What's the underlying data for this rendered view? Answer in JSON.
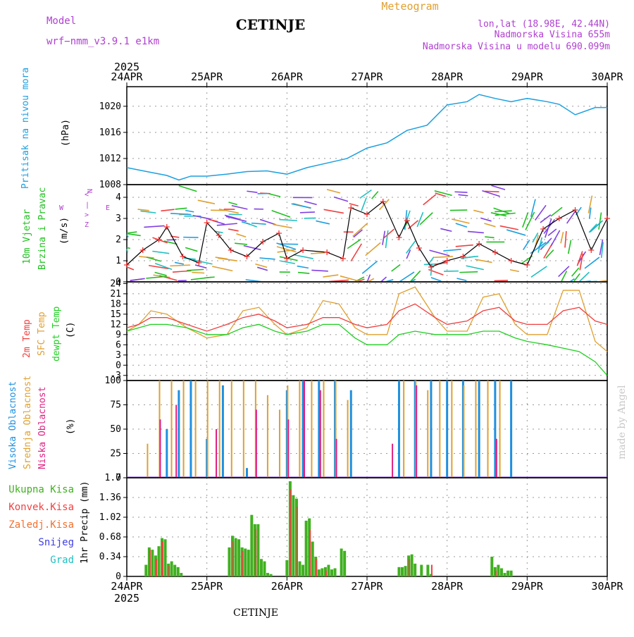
{
  "header": {
    "model_label": "Model",
    "model_name": "wrf−nmm_v3.9.1  e1km",
    "city": "CETINJE",
    "meteogram": "Meteogram",
    "lonlat": "lon,lat (18.98E, 42.44N)",
    "altitude": "Nadmorska Visina 655m",
    "model_altitude": "Nadmorska Visina u modelu 690.099m",
    "footer_city": "CETINJE",
    "signature": "made by Angel"
  },
  "colors": {
    "pressure": "#1ca0e0",
    "wind_speed_marks": "#f03030",
    "wind_line": "#000000",
    "t2m": "#f04040",
    "sfc_temp": "#e0a030",
    "dewpt": "#20d020",
    "cloud_high": "#1e90e0",
    "cloud_mid": "#e0a030",
    "cloud_low": "#e02080",
    "precip_total": "#40b020",
    "precip_conv": "#f04040",
    "grid": "#999999"
  },
  "chart_data": [
    {
      "type": "line",
      "title": "Pritisak na nivou mora",
      "ylabel": "(hPa)",
      "ylim": [
        1008,
        1023
      ],
      "yticks": [
        "1008",
        "1012",
        "1016",
        "1020"
      ],
      "x_unit": "day offset from 24APR 00Z",
      "series": [
        {
          "name": "Pritisak na nivou mora",
          "x": [
            0,
            0.25,
            0.5,
            0.65,
            0.8,
            1.0,
            1.25,
            1.5,
            1.75,
            2.0,
            2.25,
            2.5,
            2.75,
            3.0,
            3.25,
            3.5,
            3.75,
            4.0,
            4.25,
            4.4,
            4.6,
            4.8,
            5.0,
            5.25,
            5.4,
            5.6,
            5.85,
            6.0
          ],
          "values": [
            1010.6,
            1010.0,
            1009.4,
            1008.7,
            1009.3,
            1009.3,
            1009.6,
            1010.0,
            1010.1,
            1009.6,
            1010.6,
            1011.3,
            1012.0,
            1013.6,
            1014.4,
            1016.3,
            1017.1,
            1020.2,
            1020.7,
            1021.8,
            1021.2,
            1020.7,
            1021.2,
            1020.7,
            1020.3,
            1018.7,
            1019.8,
            1019.8
          ]
        }
      ]
    },
    {
      "type": "line",
      "title": "10m Vjetar Brzina i Pravac",
      "ylabel": "(m/s)",
      "ylim": [
        0,
        4.6
      ],
      "yticks": [
        "0",
        "1",
        "2",
        "3",
        "4"
      ],
      "compass": [
        "N",
        "<",
        "|",
        ">",
        "Z",
        "W",
        "E",
        "α"
      ],
      "series": [
        {
          "name": "Brzina",
          "x": [
            0,
            0.2,
            0.4,
            0.5,
            0.7,
            0.9,
            1.0,
            1.15,
            1.3,
            1.5,
            1.7,
            1.9,
            2.0,
            2.2,
            2.5,
            2.7,
            2.8,
            3.0,
            3.2,
            3.4,
            3.5,
            3.65,
            3.8,
            4.0,
            4.2,
            4.4,
            4.6,
            4.8,
            5.0,
            5.2,
            5.4,
            5.6,
            5.8,
            6.0
          ],
          "values": [
            0.8,
            1.5,
            2.0,
            2.6,
            1.2,
            0.9,
            2.8,
            2.2,
            1.5,
            1.2,
            1.9,
            2.3,
            1.1,
            1.5,
            1.4,
            1.1,
            3.5,
            3.2,
            3.8,
            2.1,
            2.9,
            1.6,
            0.7,
            1.0,
            1.2,
            1.8,
            1.4,
            1.0,
            0.8,
            2.5,
            3.0,
            3.4,
            1.5,
            3.0
          ]
        }
      ]
    },
    {
      "type": "line",
      "title": "2m Temp / SFC Temp / dewpt Temp",
      "ylabel": "(C)",
      "ylim": [
        -4.5,
        24.5
      ],
      "yticks": [
        "-3",
        "0",
        "3",
        "6",
        "9",
        "12",
        "15",
        "18",
        "21",
        "24"
      ],
      "x_unit": "day offset from 24APR 00Z",
      "series": [
        {
          "name": "2m Temp",
          "x": [
            0,
            0.15,
            0.3,
            0.5,
            0.75,
            1.0,
            1.25,
            1.45,
            1.65,
            1.85,
            2.0,
            2.25,
            2.45,
            2.65,
            2.85,
            3.0,
            3.25,
            3.4,
            3.6,
            3.85,
            4.0,
            4.25,
            4.45,
            4.65,
            4.85,
            5.0,
            5.25,
            5.45,
            5.65,
            5.85,
            6.0
          ],
          "values": [
            11,
            12,
            14,
            14,
            12,
            10,
            12,
            14,
            15,
            13,
            11,
            12,
            14,
            14,
            12,
            11,
            12,
            16,
            18,
            14,
            12,
            13,
            16,
            17,
            13,
            12,
            12,
            16,
            17,
            13,
            12
          ]
        },
        {
          "name": "SFC Temp",
          "x": [
            0,
            0.15,
            0.3,
            0.5,
            0.75,
            1.0,
            1.25,
            1.45,
            1.65,
            1.85,
            2.0,
            2.25,
            2.45,
            2.65,
            2.85,
            3.0,
            3.25,
            3.4,
            3.6,
            3.85,
            4.0,
            4.25,
            4.45,
            4.65,
            4.85,
            5.0,
            5.25,
            5.45,
            5.65,
            5.85,
            6.0
          ],
          "values": [
            10,
            12,
            16,
            15,
            11,
            8,
            9,
            16,
            17,
            12,
            9,
            11,
            19,
            18,
            11,
            9,
            9,
            21,
            23,
            14,
            10,
            10,
            20,
            21,
            12,
            9,
            9,
            22,
            22,
            7,
            4
          ]
        },
        {
          "name": "dewpt Temp",
          "x": [
            0,
            0.15,
            0.3,
            0.5,
            0.75,
            1.0,
            1.25,
            1.45,
            1.65,
            1.85,
            2.0,
            2.25,
            2.45,
            2.65,
            2.85,
            3.0,
            3.25,
            3.4,
            3.6,
            3.85,
            4.0,
            4.25,
            4.45,
            4.65,
            4.85,
            5.0,
            5.25,
            5.45,
            5.65,
            5.85,
            6.0
          ],
          "values": [
            10,
            11,
            12,
            12,
            11,
            9,
            9,
            11,
            12,
            10,
            9,
            10,
            12,
            12,
            8,
            6,
            6,
            9,
            10,
            9,
            9,
            9,
            10,
            10,
            8,
            7,
            6,
            5,
            4,
            1,
            -3
          ]
        }
      ]
    },
    {
      "type": "bar",
      "title": "Visoka / Srednja / Niska Oblacnost",
      "ylabel": "(%)",
      "ylim": [
        0,
        100
      ],
      "yticks": [
        "0",
        "25",
        "50",
        "75",
        "100"
      ],
      "x_unit": "day offset from 24APR 00Z",
      "series": [
        {
          "name": "Visoka Oblacnost",
          "x": [
            0.5,
            0.65,
            0.8,
            1.0,
            1.2,
            1.5,
            2.0,
            2.2,
            2.4,
            2.6,
            2.8,
            3.4,
            3.6,
            3.8,
            4.0,
            4.2,
            4.4,
            4.6,
            4.8
          ],
          "values": [
            50,
            90,
            100,
            40,
            95,
            10,
            90,
            100,
            100,
            100,
            90,
            100,
            100,
            100,
            100,
            100,
            100,
            100,
            100
          ]
        },
        {
          "name": "Srednja Oblacnost",
          "x": [
            0.25,
            0.4,
            0.55,
            0.7,
            0.85,
            1.0,
            1.15,
            1.3,
            1.45,
            1.6,
            1.75,
            1.9,
            2.0,
            2.15,
            2.3,
            2.45,
            2.6,
            2.75,
            3.45,
            3.6,
            3.75,
            3.9,
            4.05,
            4.2,
            4.35,
            4.5,
            4.65
          ],
          "values": [
            35,
            100,
            100,
            100,
            100,
            100,
            100,
            100,
            100,
            100,
            85,
            70,
            95,
            100,
            100,
            100,
            100,
            80,
            100,
            100,
            90,
            100,
            100,
            95,
            100,
            100,
            100
          ]
        },
        {
          "name": "Niska Oblacnost",
          "x": [
            0.4,
            0.6,
            1.1,
            1.6,
            2.0,
            2.2,
            2.4,
            2.6,
            3.3,
            3.6,
            4.6
          ],
          "values": [
            60,
            75,
            50,
            70,
            60,
            100,
            90,
            40,
            35,
            95,
            40
          ]
        }
      ]
    },
    {
      "type": "bar",
      "title": "1hr Precip",
      "ylabel": "1hr Precip (mm)",
      "ylim": [
        0,
        1.7
      ],
      "yticks": [
        "0",
        "0.34",
        "0.68",
        "1.02",
        "1.36",
        "1.7"
      ],
      "xticks": [
        "24APR",
        "25APR",
        "26APR",
        "27APR",
        "28APR",
        "29APR",
        "30APR"
      ],
      "year": "2025",
      "legend": [
        "Ukupna Kisa",
        "Konvek.Kisa",
        "Zaledj.Kisa",
        "Snijeg",
        "Grad"
      ],
      "series": [
        {
          "name": "Ukupna Kisa",
          "x": [
            0.24,
            0.28,
            0.32,
            0.36,
            0.4,
            0.44,
            0.48,
            0.52,
            0.56,
            0.6,
            0.64,
            0.68,
            1.28,
            1.32,
            1.36,
            1.4,
            1.44,
            1.48,
            1.52,
            1.56,
            1.6,
            1.64,
            1.68,
            1.72,
            1.76,
            1.8,
            2.0,
            2.04,
            2.08,
            2.12,
            2.16,
            2.2,
            2.24,
            2.28,
            2.32,
            2.36,
            2.4,
            2.44,
            2.48,
            2.52,
            2.56,
            2.6,
            2.68,
            2.72,
            3.4,
            3.44,
            3.48,
            3.52,
            3.56,
            3.6,
            3.68,
            3.76,
            3.8,
            4.56,
            4.6,
            4.64,
            4.68,
            4.72,
            4.76,
            4.8
          ],
          "values": [
            0.2,
            0.5,
            0.46,
            0.36,
            0.52,
            0.66,
            0.64,
            0.22,
            0.26,
            0.2,
            0.16,
            0.06,
            0.5,
            0.7,
            0.66,
            0.64,
            0.5,
            0.48,
            0.46,
            1.06,
            0.9,
            0.9,
            0.3,
            0.26,
            0.06,
            0.04,
            0.28,
            1.64,
            1.4,
            1.34,
            0.26,
            0.2,
            0.96,
            1.0,
            0.6,
            0.34,
            0.12,
            0.14,
            0.16,
            0.2,
            0.12,
            0.14,
            0.48,
            0.44,
            0.16,
            0.16,
            0.18,
            0.36,
            0.38,
            0.22,
            0.2,
            0.2,
            0.04,
            0.34,
            0.16,
            0.2,
            0.14,
            0.06,
            0.1,
            0.1
          ]
        },
        {
          "name": "Konvek.Kisa",
          "x": [
            0.28,
            0.36,
            0.44,
            0.52,
            1.32,
            1.44,
            1.6,
            2.04,
            2.12,
            2.28,
            2.36,
            2.48,
            3.52,
            3.8,
            4.6
          ],
          "values": [
            0.46,
            0.3,
            0.6,
            0.18,
            0.6,
            0.44,
            0.82,
            1.5,
            1.2,
            0.8,
            0.3,
            0.1,
            0.3,
            0.2,
            0.1
          ]
        }
      ]
    }
  ]
}
